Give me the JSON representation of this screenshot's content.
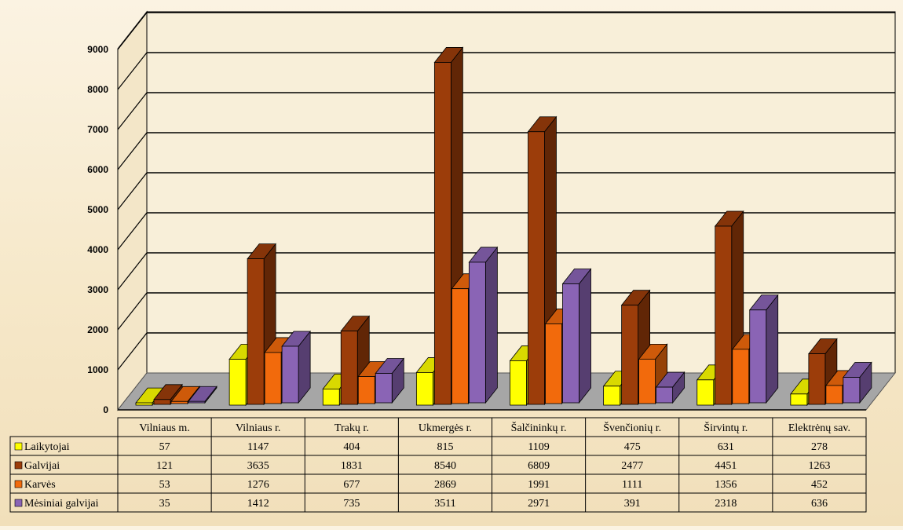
{
  "chart_data": {
    "type": "bar",
    "categories": [
      "Vilniaus m.",
      "Vilniaus r.",
      "Trakų r.",
      "Ukmergės r.",
      "Šalčininkų r.",
      "Švenčionių r.",
      "Širvintų r.",
      "Elektrėnų sav."
    ],
    "series": [
      {
        "name": "Laikytojai",
        "color": "#ffff00",
        "values": [
          57,
          1147,
          404,
          815,
          1109,
          475,
          631,
          278
        ]
      },
      {
        "name": "Galvijai",
        "color": "#9c3d0a",
        "values": [
          121,
          3635,
          1831,
          8540,
          6809,
          2477,
          4451,
          1263
        ]
      },
      {
        "name": "Karvės",
        "color": "#f26a0c",
        "values": [
          53,
          1276,
          677,
          2869,
          1991,
          1111,
          1356,
          452
        ]
      },
      {
        "name": "Mėsiniai galvijai",
        "color": "#8a64b5",
        "values": [
          35,
          1412,
          735,
          3511,
          2971,
          391,
          2318,
          636
        ]
      }
    ],
    "ylim": [
      0,
      9000
    ],
    "yticks": [
      "0",
      "1000",
      "2000",
      "3000",
      "4000",
      "5000",
      "6000",
      "7000",
      "8000",
      "9000"
    ],
    "grid": true,
    "legend": "data-table-below",
    "style": "3d-column"
  }
}
